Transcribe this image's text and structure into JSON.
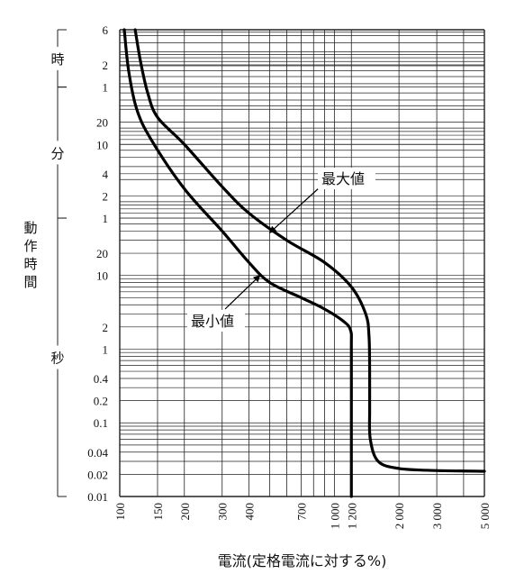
{
  "chart_data": {
    "type": "line",
    "title": "",
    "xlabel": "電流(定格電流に対する%)",
    "ylabel": "動作時間",
    "x_scale": "log",
    "xlim": [
      100,
      5000
    ],
    "x_ticks": [
      {
        "v": 100,
        "label": "100"
      },
      {
        "v": 150,
        "label": "150"
      },
      {
        "v": 200,
        "label": "200"
      },
      {
        "v": 300,
        "label": "300"
      },
      {
        "v": 400,
        "label": "400"
      },
      {
        "v": 700,
        "label": "700"
      },
      {
        "v": 1000,
        "label": "1 000"
      },
      {
        "v": 1200,
        "label": "1 200"
      },
      {
        "v": 2000,
        "label": "2 000"
      },
      {
        "v": 3000,
        "label": "3 000"
      },
      {
        "v": 5000,
        "label": "5 000"
      }
    ],
    "y_scale": "log",
    "ylim_seconds": [
      0.01,
      21600
    ],
    "y_ticks": [
      {
        "sec": 21600,
        "label": "6"
      },
      {
        "sec": 7200,
        "label": "2"
      },
      {
        "sec": 3600,
        "label": "1"
      },
      {
        "sec": 1200,
        "label": "20"
      },
      {
        "sec": 600,
        "label": "10"
      },
      {
        "sec": 240,
        "label": "4"
      },
      {
        "sec": 120,
        "label": "2"
      },
      {
        "sec": 60,
        "label": "1"
      },
      {
        "sec": 20,
        "label": "20"
      },
      {
        "sec": 10,
        "label": "10"
      },
      {
        "sec": 2,
        "label": "2"
      },
      {
        "sec": 1,
        "label": "1"
      },
      {
        "sec": 0.4,
        "label": "0.4"
      },
      {
        "sec": 0.2,
        "label": "0.2"
      },
      {
        "sec": 0.1,
        "label": "0.1"
      },
      {
        "sec": 0.04,
        "label": "0.04"
      },
      {
        "sec": 0.02,
        "label": "0.02"
      },
      {
        "sec": 0.01,
        "label": "0.01"
      }
    ],
    "y_units": [
      {
        "label": "時",
        "from_sec": 3600,
        "to_sec": 21600
      },
      {
        "label": "分",
        "from_sec": 60,
        "to_sec": 3600
      },
      {
        "label": "秒",
        "from_sec": 0.01,
        "to_sec": 60
      }
    ],
    "series": [
      {
        "name": "最大値",
        "points": [
          [
            118,
            21600
          ],
          [
            125,
            8000
          ],
          [
            135,
            3000
          ],
          [
            150,
            1400
          ],
          [
            200,
            600
          ],
          [
            300,
            160
          ],
          [
            400,
            70
          ],
          [
            600,
            30
          ],
          [
            900,
            15
          ],
          [
            1200,
            7
          ],
          [
            1400,
            3
          ],
          [
            1450,
            1.5
          ],
          [
            1460,
            0.5
          ],
          [
            1460,
            0.15
          ],
          [
            1470,
            0.06
          ],
          [
            1600,
            0.03
          ],
          [
            2000,
            0.024
          ],
          [
            3000,
            0.0225
          ],
          [
            5000,
            0.022
          ]
        ]
      },
      {
        "name": "最小値",
        "points": [
          [
            105,
            21600
          ],
          [
            110,
            6000
          ],
          [
            120,
            1800
          ],
          [
            140,
            700
          ],
          [
            200,
            150
          ],
          [
            300,
            40
          ],
          [
            400,
            15
          ],
          [
            500,
            8
          ],
          [
            700,
            5
          ],
          [
            900,
            3.5
          ],
          [
            1100,
            2.4
          ],
          [
            1190,
            1.8
          ],
          [
            1200,
            1
          ],
          [
            1200,
            0.1
          ],
          [
            1200,
            0.01
          ]
        ]
      }
    ],
    "annotations": [
      {
        "text": "最大値",
        "series": "最大値"
      },
      {
        "text": "最小値",
        "series": "最小値"
      }
    ]
  }
}
